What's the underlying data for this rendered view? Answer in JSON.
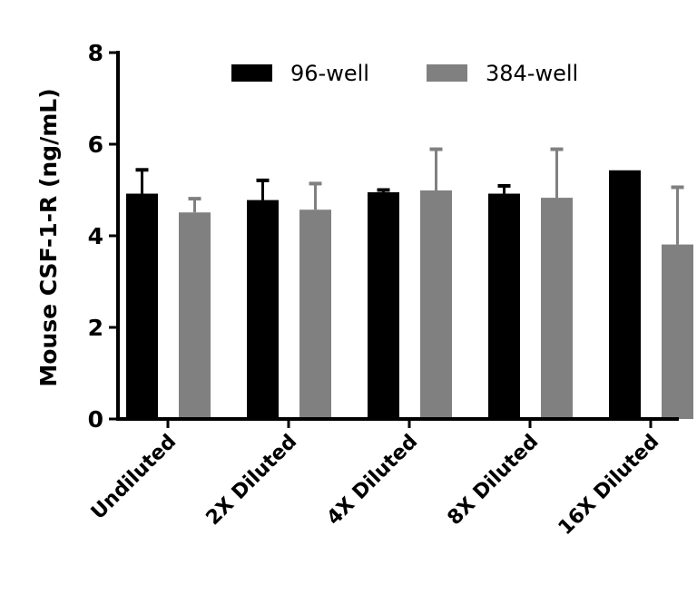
{
  "chart_data": {
    "type": "bar",
    "title": "",
    "xlabel": "",
    "ylabel": "Mouse CSF-1-R (ng/mL)",
    "ylim": [
      0,
      8
    ],
    "yticks": [
      "0",
      "2",
      "4",
      "6",
      "8"
    ],
    "grid": false,
    "legend_placement": "top",
    "categories": [
      "Undiluted",
      "2X Diluted",
      "4X Diluted",
      "8X Diluted",
      "16X Diluted"
    ],
    "series": [
      {
        "name": "96-well",
        "color": "#000000",
        "values": [
          4.92,
          4.78,
          4.95,
          4.92,
          5.43
        ],
        "error_upper": [
          5.44,
          5.21,
          5.0,
          5.09,
          null
        ]
      },
      {
        "name": "384-well",
        "color": "#808080",
        "values": [
          4.51,
          4.57,
          4.99,
          4.83,
          3.81
        ],
        "error_upper": [
          4.81,
          5.14,
          5.89,
          5.89,
          5.06
        ]
      }
    ]
  }
}
